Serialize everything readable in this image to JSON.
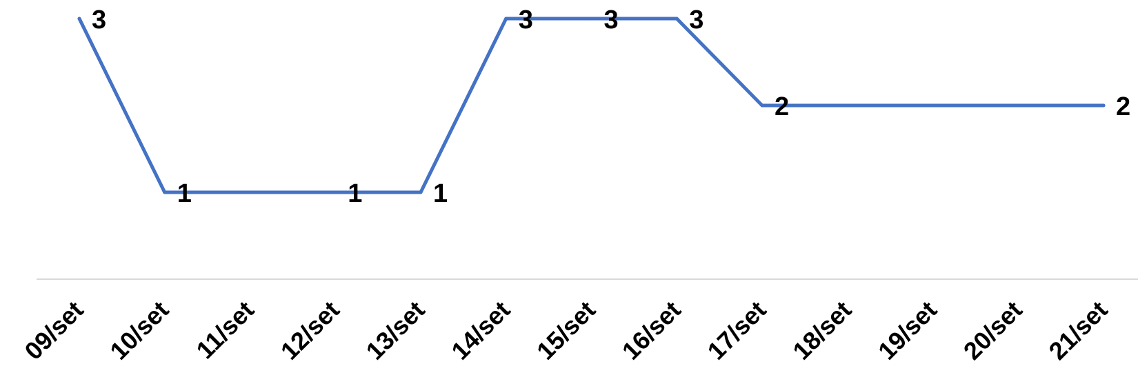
{
  "chart_data": {
    "type": "line",
    "categories": [
      "09/set",
      "10/set",
      "11/set",
      "12/set",
      "13/set",
      "14/set",
      "15/set",
      "16/set",
      "17/set",
      "18/set",
      "19/set",
      "20/set",
      "21/set"
    ],
    "series": [
      {
        "values": [
          3,
          1,
          null,
          1,
          1,
          3,
          3,
          3,
          2,
          null,
          null,
          null,
          2
        ],
        "color": "#4472C4"
      }
    ],
    "data_labels": [
      "3",
      "1",
      "",
      "1",
      "1",
      "3",
      "3",
      "3",
      "2",
      "",
      "",
      "",
      "2"
    ],
    "ylim": [
      0,
      3
    ],
    "grid": false,
    "legend": "none",
    "baseline_color": "#D9D9D9"
  }
}
